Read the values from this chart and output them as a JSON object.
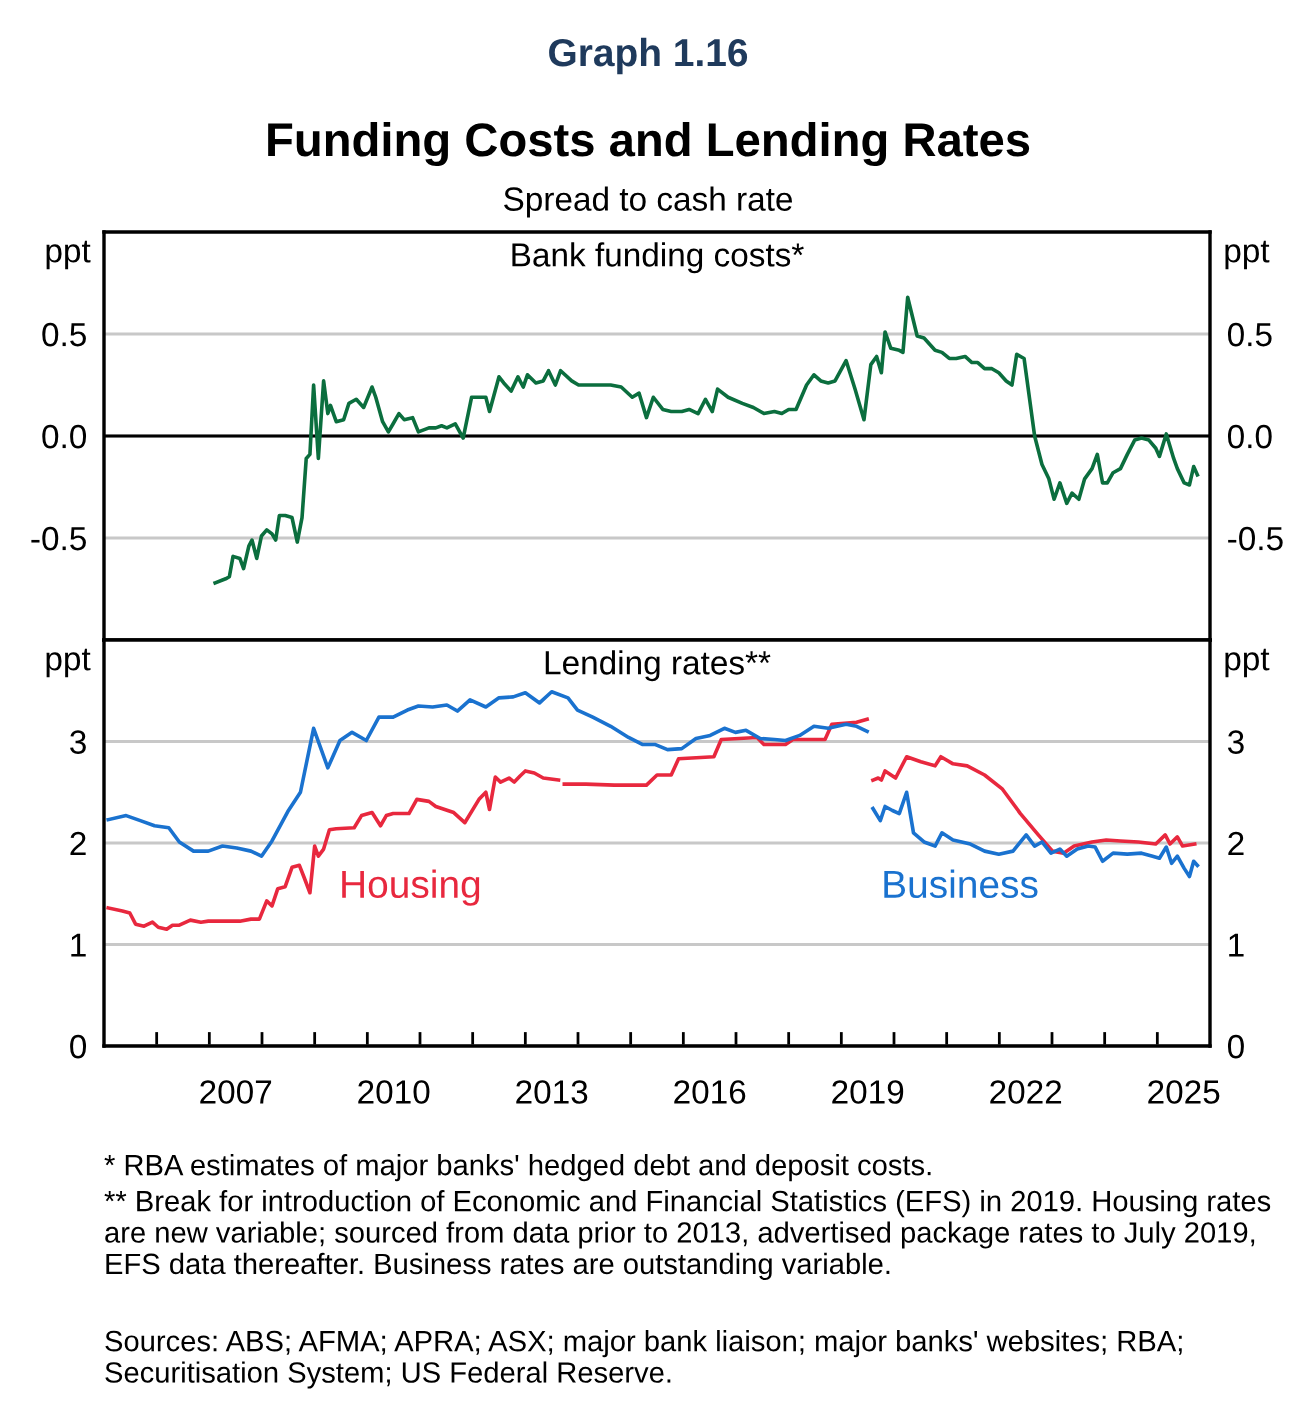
{
  "chart_data": [
    {
      "type": "line",
      "title": "Funding Costs and Lending Rates",
      "subtitle": "Spread to cash rate",
      "annotations": [
        "Graph 1.16",
        "Bank funding costs*"
      ],
      "ylabel": "ppt",
      "y2label": "ppt",
      "xlim": [
        2005,
        2026
      ],
      "ylim": [
        -1,
        1
      ],
      "yticks": [
        -0.5,
        {
          "value": 0,
          "label": "0.0"
        },
        0.5
      ],
      "y2lim": [
        -1,
        1
      ],
      "y2ticks": [
        -0.5,
        {
          "value": 0,
          "label": "0.0"
        },
        0.5
      ],
      "tick_labels": "y",
      "grid": "y",
      "line_style": "solid",
      "ref_lines": [
        {
          "axis": "y",
          "value": 0,
          "label": null,
          "color": "#000000"
        }
      ],
      "series": [
        {
          "color": "#0b6e3e",
          "x": [
            2007.11,
            2007.31,
            2007.38,
            2007.45,
            2007.58,
            2007.65,
            2007.75,
            2007.81,
            2007.9,
            2007.99,
            2008.09,
            2008.19,
            2008.26,
            2008.33,
            2008.44,
            2008.57,
            2008.67,
            2008.76,
            2008.84,
            2008.91,
            2008.98,
            2009.07,
            2009.17,
            2009.25,
            2009.3,
            2009.41,
            2009.55,
            2009.65,
            2009.79,
            2009.93,
            2010.09,
            2010.16,
            2010.29,
            2010.4,
            2010.49,
            2010.6,
            2010.7,
            2010.86,
            2010.97,
            2011.17,
            2011.3,
            2011.41,
            2011.51,
            2011.67,
            2011.82,
            2011.98,
            2012.25,
            2012.32,
            2012.5,
            2012.59,
            2012.73,
            2012.86,
            2012.96,
            2013.04,
            2013.2,
            2013.34,
            2013.44,
            2013.57,
            2013.67,
            2013.88,
            2014.01,
            2014.28,
            2014.49,
            2014.62,
            2014.82,
            2015.03,
            2015.16,
            2015.3,
            2015.43,
            2015.61,
            2015.77,
            2015.97,
            2016.11,
            2016.28,
            2016.42,
            2016.55,
            2016.65,
            2016.85,
            2017.12,
            2017.33,
            2017.53,
            2017.73,
            2017.87,
            2018.0,
            2018.14,
            2018.34,
            2018.48,
            2018.61,
            2018.75,
            2018.88,
            2019.09,
            2019.26,
            2019.43,
            2019.56,
            2019.67,
            2019.76,
            2019.83,
            2019.94,
            2020.1,
            2020.17,
            2020.26,
            2020.44,
            2020.57,
            2020.78,
            2020.91,
            2021.05,
            2021.18,
            2021.35,
            2021.48,
            2021.59,
            2021.72,
            2021.86,
            2021.99,
            2022.13,
            2022.24,
            2022.33,
            2022.47,
            2022.67,
            2022.81,
            2022.94,
            2023.04,
            2023.15,
            2023.28,
            2023.38,
            2023.51,
            2023.62,
            2023.76,
            2023.86,
            2023.96,
            2024.05,
            2024.16,
            2024.3,
            2024.43,
            2024.57,
            2024.7,
            2024.84,
            2024.97,
            2025.04,
            2025.17,
            2025.31,
            2025.38,
            2025.51,
            2025.61,
            2025.69,
            2025.76
          ],
          "values": [
            -0.72,
            -0.7,
            -0.69,
            -0.59,
            -0.6,
            -0.65,
            -0.54,
            -0.51,
            -0.6,
            -0.49,
            -0.46,
            -0.48,
            -0.51,
            -0.39,
            -0.39,
            -0.4,
            -0.52,
            -0.4,
            -0.11,
            -0.09,
            0.25,
            -0.11,
            0.27,
            0.11,
            0.15,
            0.07,
            0.08,
            0.16,
            0.18,
            0.14,
            0.24,
            0.19,
            0.07,
            0.02,
            0.06,
            0.11,
            0.08,
            0.09,
            0.02,
            0.04,
            0.04,
            0.05,
            0.04,
            0.06,
            -0.01,
            0.19,
            0.19,
            0.12,
            0.29,
            0.26,
            0.22,
            0.29,
            0.24,
            0.3,
            0.26,
            0.27,
            0.32,
            0.25,
            0.32,
            0.27,
            0.25,
            0.25,
            0.25,
            0.25,
            0.24,
            0.19,
            0.21,
            0.09,
            0.19,
            0.13,
            0.12,
            0.12,
            0.13,
            0.11,
            0.18,
            0.12,
            0.23,
            0.19,
            0.16,
            0.14,
            0.11,
            0.12,
            0.11,
            0.13,
            0.13,
            0.25,
            0.3,
            0.27,
            0.26,
            0.27,
            0.37,
            0.23,
            0.08,
            0.35,
            0.39,
            0.31,
            0.51,
            0.43,
            0.42,
            0.41,
            0.68,
            0.49,
            0.48,
            0.42,
            0.41,
            0.38,
            0.38,
            0.39,
            0.36,
            0.36,
            0.33,
            0.33,
            0.31,
            0.27,
            0.25,
            0.4,
            0.38,
            0.0,
            -0.14,
            -0.21,
            -0.31,
            -0.23,
            -0.33,
            -0.28,
            -0.31,
            -0.21,
            -0.16,
            -0.09,
            -0.23,
            -0.23,
            -0.18,
            -0.16,
            -0.09,
            -0.02,
            -0.01,
            -0.02,
            -0.06,
            -0.1,
            0.01,
            -0.11,
            -0.16,
            -0.23,
            -0.24,
            -0.15,
            -0.19
          ]
        }
      ]
    },
    {
      "type": "line",
      "title": "Lending rates**",
      "annotations": [
        "* RBA estimates of major banks' hedged debt and deposit costs.",
        "** Break for introduction of Economic and Financial Statistics (EFS) in 2019. Housing rates are new variable; sourced from data prior to 2013, advertised package rates to July 2019, EFS data thereafter. Business rates are outstanding variable.",
        "Sources: ABS; AFMA; APRA; ASX; major bank liaison; major banks' websites; RBA; Securitisation System; US Federal Reserve."
      ],
      "ylabel": "ppt",
      "y2label": "ppt",
      "xlim": [
        2005,
        2026
      ],
      "ylim": [
        0,
        4
      ],
      "yticks": [
        0,
        1,
        2,
        3
      ],
      "y2lim": [
        0,
        4
      ],
      "y2ticks": [
        0,
        1,
        2,
        3
      ],
      "xticks": [
        {
          "value": 2006,
          "label": null
        },
        {
          "value": 2007,
          "label": null
        },
        {
          "value": 2008,
          "label": null
        },
        {
          "value": 2009,
          "label": null
        },
        {
          "value": 2010,
          "label": null
        },
        {
          "value": 2011,
          "label": null
        },
        {
          "value": 2012,
          "label": null
        },
        {
          "value": 2013,
          "label": null
        },
        {
          "value": 2014,
          "label": null
        },
        {
          "value": 2015,
          "label": null
        },
        {
          "value": 2016,
          "label": null
        },
        {
          "value": 2017,
          "label": null
        },
        {
          "value": 2018,
          "label": null
        },
        {
          "value": 2019,
          "label": null
        },
        {
          "value": 2020,
          "label": null
        },
        {
          "value": 2021,
          "label": null
        },
        {
          "value": 2022,
          "label": null
        },
        {
          "value": 2023,
          "label": null
        },
        {
          "value": 2024,
          "label": null
        },
        {
          "value": 2025,
          "label": null
        },
        {
          "value": 2007.5,
          "label": "2007"
        },
        {
          "value": 2010.5,
          "label": "2010"
        },
        {
          "value": 2013.5,
          "label": "2013"
        },
        {
          "value": 2016.5,
          "label": "2016"
        },
        {
          "value": 2019.5,
          "label": "2019"
        },
        {
          "value": 2022.5,
          "label": "2022"
        },
        {
          "value": 2025.5,
          "label": "2025"
        }
      ],
      "grid": "y",
      "line_style": "solid",
      "series": [
        {
          "name": "Housing",
          "color": "#e8283e",
          "x": [
            2005.08,
            2005.35,
            2005.49,
            2005.6,
            2005.76,
            2005.92,
            2006.03,
            2006.19,
            2006.3,
            2006.43,
            2006.64,
            2006.84,
            2006.98,
            2007.31,
            2007.58,
            2007.79,
            2007.95,
            2008.09,
            2008.19,
            2008.3,
            2008.44,
            2008.57,
            2008.71,
            2008.8,
            2008.91,
            2009.0,
            2009.07,
            2009.17,
            2009.28,
            2009.41,
            2009.75,
            2009.89,
            2010.09,
            2010.25,
            2010.36,
            2010.49,
            2010.79,
            2010.94,
            2011.17,
            2011.3,
            2011.64,
            2011.85,
            2012.12,
            2012.25,
            2012.32,
            2012.43,
            2012.53,
            2012.69,
            2012.79,
            2012.9,
            2013.0,
            2013.17,
            2013.34,
            2013.63,
            2013.68,
            2013.74,
            2014.15,
            2014.69,
            2015.3,
            2015.5,
            2015.77,
            2015.91,
            2016.58,
            2016.72,
            2017.4,
            2017.53,
            2017.94,
            2018.08,
            2018.69,
            2018.82,
            2019.29,
            2019.49,
            2019.55,
            2019.6,
            2019.7,
            2019.76,
            2019.83,
            2020.03,
            2020.24,
            2020.51,
            2020.78,
            2020.89,
            2021.12,
            2021.39,
            2021.72,
            2022.06,
            2022.4,
            2022.74,
            2023.01,
            2023.22,
            2023.42,
            2023.76,
            2024.03,
            2024.3,
            2024.64,
            2024.97,
            2025.15,
            2025.24,
            2025.38,
            2025.48,
            2025.71
          ],
          "values": [
            1.36,
            1.33,
            1.31,
            1.2,
            1.18,
            1.22,
            1.17,
            1.15,
            1.19,
            1.19,
            1.24,
            1.22,
            1.23,
            1.23,
            1.23,
            1.25,
            1.25,
            1.43,
            1.38,
            1.55,
            1.57,
            1.76,
            1.78,
            1.66,
            1.51,
            1.97,
            1.87,
            1.94,
            2.13,
            2.14,
            2.15,
            2.27,
            2.3,
            2.17,
            2.27,
            2.29,
            2.29,
            2.43,
            2.41,
            2.36,
            2.3,
            2.2,
            2.43,
            2.5,
            2.33,
            2.65,
            2.6,
            2.64,
            2.6,
            2.66,
            2.71,
            2.69,
            2.64,
            2.62,
            null,
            2.58,
            2.58,
            2.57,
            2.57,
            2.67,
            2.67,
            2.83,
            2.85,
            3.02,
            3.04,
            2.97,
            2.97,
            3.02,
            3.02,
            3.17,
            3.19,
            3.22,
            null,
            2.62,
            2.64,
            2.62,
            2.71,
            2.64,
            2.85,
            2.8,
            2.76,
            2.85,
            2.78,
            2.76,
            2.67,
            2.53,
            2.29,
            2.08,
            1.92,
            1.9,
            1.97,
            2.01,
            2.03,
            2.02,
            2.01,
            1.99,
            2.08,
            1.99,
            2.06,
            1.97,
            1.99
          ]
        },
        {
          "name": "Business",
          "color": "#1a72cf",
          "x": [
            2005.08,
            2005.42,
            2005.69,
            2005.96,
            2006.23,
            2006.43,
            2006.7,
            2006.98,
            2007.25,
            2007.52,
            2007.79,
            2007.99,
            2008.19,
            2008.49,
            2008.73,
            2008.98,
            2009.25,
            2009.48,
            2009.71,
            2009.98,
            2010.22,
            2010.49,
            2010.76,
            2010.97,
            2011.24,
            2011.51,
            2011.71,
            2011.95,
            2012.25,
            2012.5,
            2012.77,
            2013.0,
            2013.27,
            2013.5,
            2013.81,
            2013.99,
            2014.28,
            2014.62,
            2014.96,
            2015.23,
            2015.47,
            2015.7,
            2015.97,
            2016.24,
            2016.51,
            2016.78,
            2016.99,
            2017.19,
            2017.46,
            2017.73,
            2017.94,
            2018.21,
            2018.48,
            2018.75,
            2019.09,
            2019.29,
            2019.49,
            2019.55,
            2019.6,
            2019.74,
            2019.83,
            2019.97,
            2020.1,
            2020.24,
            2020.37,
            2020.57,
            2020.78,
            2020.91,
            2021.12,
            2021.45,
            2021.72,
            2021.99,
            2022.26,
            2022.51,
            2022.67,
            2022.81,
            2022.98,
            2023.15,
            2023.28,
            2023.48,
            2023.69,
            2023.82,
            2023.96,
            2024.16,
            2024.43,
            2024.7,
            2024.91,
            2025.04,
            2025.17,
            2025.27,
            2025.38,
            2025.51,
            2025.61,
            2025.69,
            2025.76
          ],
          "values": [
            2.23,
            2.27,
            2.22,
            2.17,
            2.15,
            2.01,
            1.92,
            1.92,
            1.97,
            1.95,
            1.92,
            1.87,
            2.02,
            2.31,
            2.5,
            3.13,
            2.74,
            3.01,
            3.09,
            3.01,
            3.24,
            3.24,
            3.31,
            3.35,
            3.34,
            3.36,
            3.3,
            3.41,
            3.34,
            3.43,
            3.44,
            3.48,
            3.38,
            3.49,
            3.43,
            3.31,
            3.24,
            3.15,
            3.04,
            2.97,
            2.97,
            2.92,
            2.93,
            3.03,
            3.06,
            3.13,
            3.09,
            3.11,
            3.03,
            3.02,
            3.01,
            3.06,
            3.15,
            3.13,
            3.17,
            3.15,
            3.1,
            null,
            2.34,
            2.22,
            2.36,
            2.32,
            2.29,
            2.5,
            2.1,
            2.01,
            1.97,
            2.1,
            2.03,
            1.99,
            1.92,
            1.89,
            1.92,
            2.08,
            1.97,
            2.01,
            1.9,
            1.94,
            1.87,
            1.94,
            1.97,
            1.96,
            1.82,
            1.9,
            1.89,
            1.9,
            1.87,
            1.85,
            1.96,
            1.8,
            1.87,
            1.75,
            1.67,
            1.82,
            1.78
          ]
        }
      ]
    }
  ]
}
